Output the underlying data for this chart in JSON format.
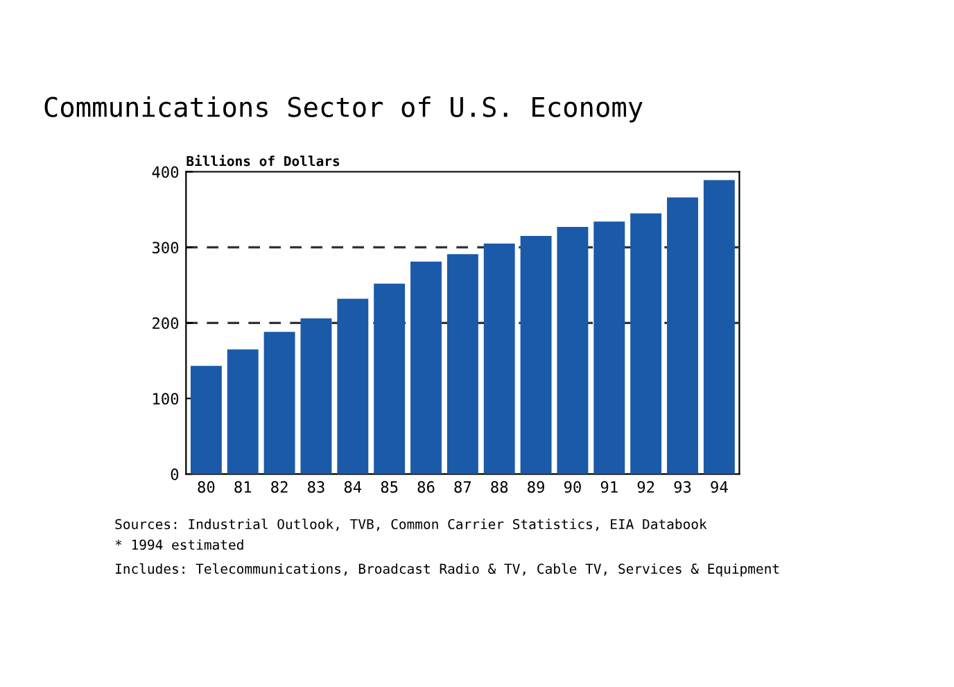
{
  "chart_data": {
    "type": "bar",
    "title": "Communications Sector of U.S. Economy",
    "ylabel": "Billions of Dollars",
    "categories": [
      "80",
      "81",
      "82",
      "83",
      "84",
      "85",
      "86",
      "87",
      "88",
      "89",
      "90",
      "91",
      "92",
      "93",
      "94"
    ],
    "values": [
      143,
      165,
      188,
      206,
      232,
      252,
      281,
      291,
      305,
      315,
      327,
      334,
      345,
      366,
      389
    ],
    "color": "#1a5aa8",
    "ylim": [
      0,
      400
    ],
    "yticks": [
      0,
      100,
      200,
      300,
      400
    ],
    "ref_lines": [
      {
        "axis": "y",
        "value": 200,
        "line_style": "dashed",
        "color": "#333333"
      },
      {
        "axis": "y",
        "value": 300,
        "line_style": "dashed",
        "color": "#333333"
      }
    ],
    "annotations": [
      "Sources: Industrial Outlook, TVB, Common Carrier Statistics, EIA Databook",
      "* 1994 estimated",
      "Includes: Telecommunications, Broadcast Radio & TV, Cable TV, Services & Equipment"
    ]
  }
}
